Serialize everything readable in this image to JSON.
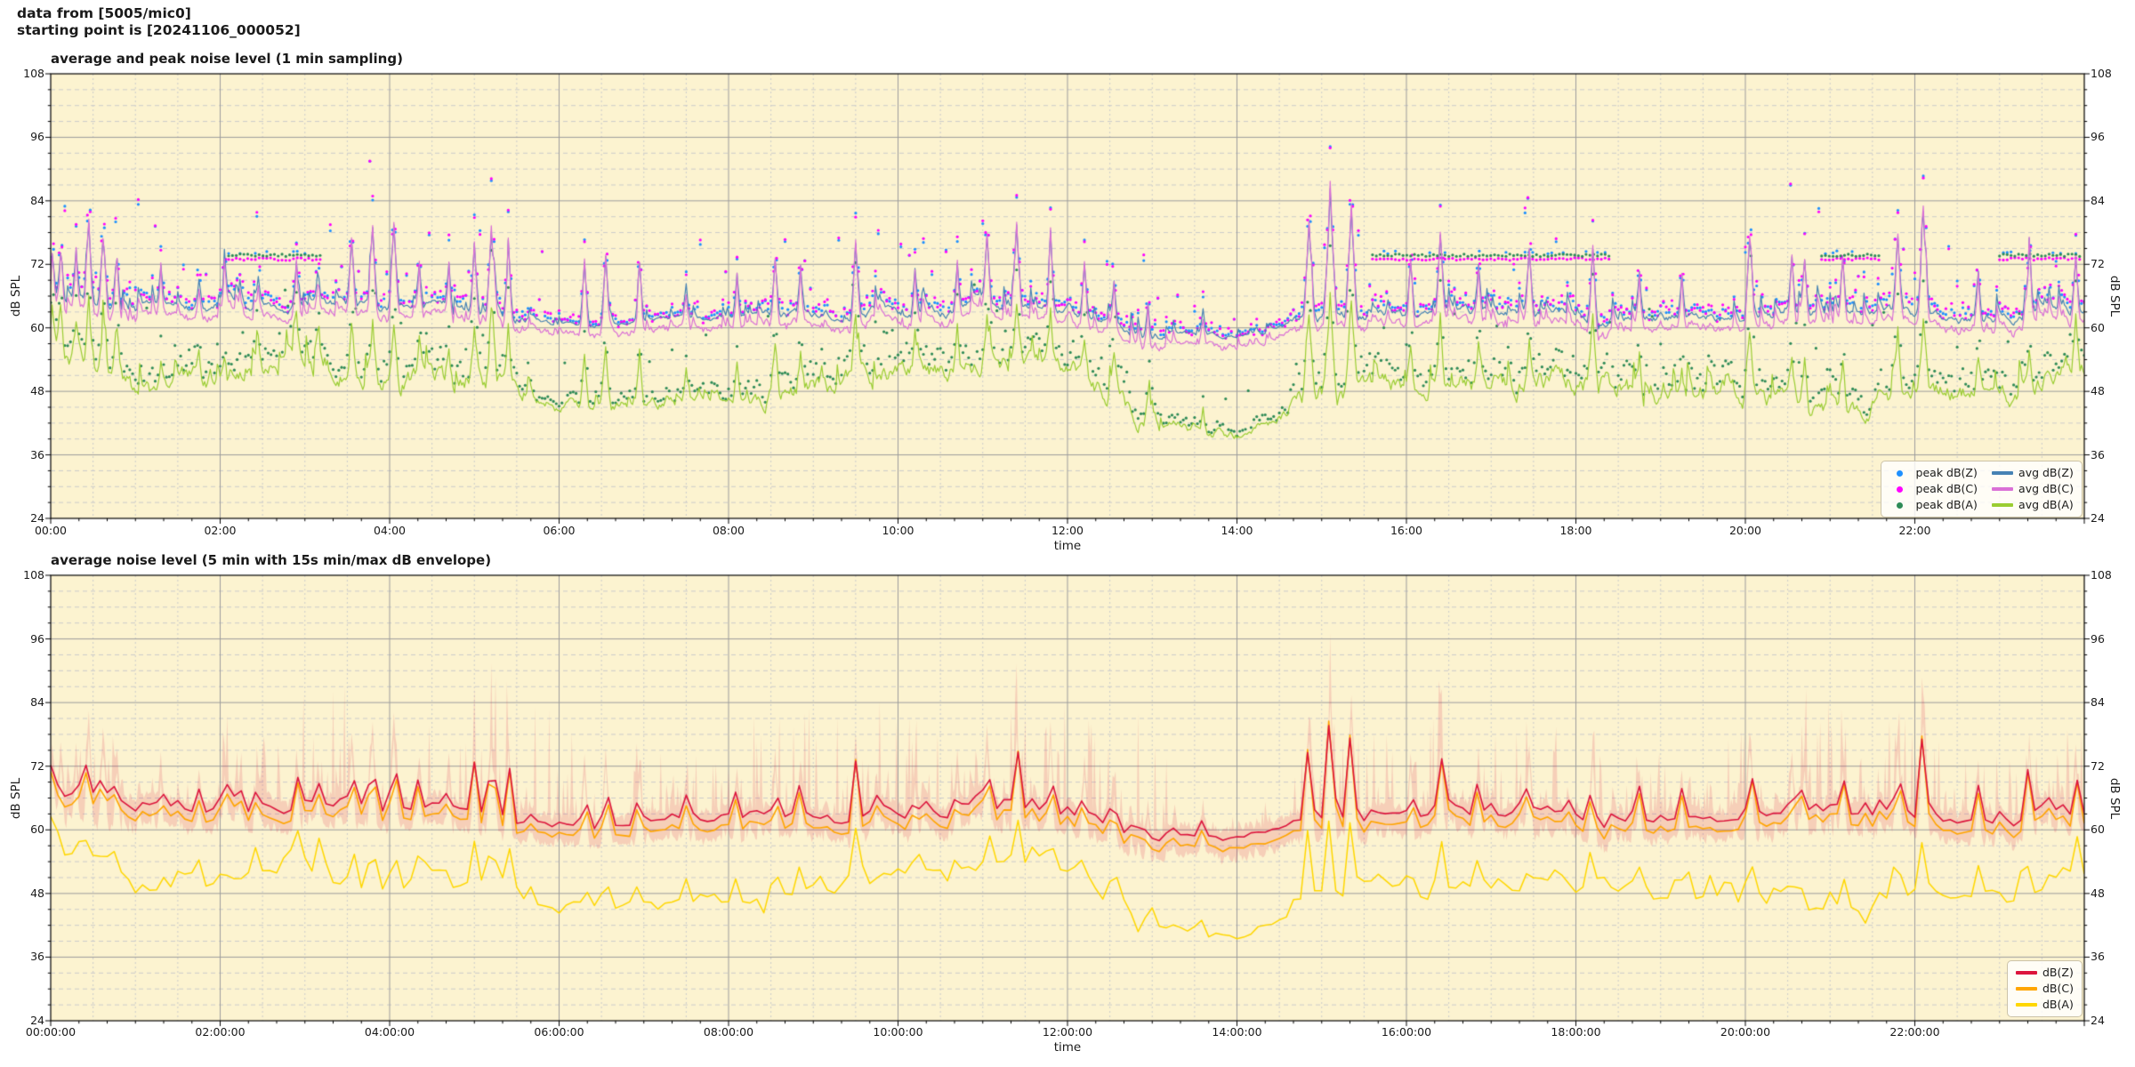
{
  "header": {
    "line1": "data from [5005/mic0]",
    "line2": "starting point is [20241106_000052]"
  },
  "style": {
    "figure_bg": "#ffffff",
    "axes_bg": "#FCF3D0",
    "grid_major": "#9c9c9c",
    "grid_minor": "#cbcbcb",
    "spine": "#000000",
    "text": "#1a1a1a"
  },
  "charts": [
    {
      "title": "average and peak noise level (1 min sampling)",
      "xlabel": "time",
      "ylabel": "dB SPL",
      "legend": [
        {
          "label": "peak dB(Z)",
          "swatch": "dot",
          "color": "#1E90FF",
          "col": 0
        },
        {
          "label": "peak dB(C)",
          "swatch": "dot",
          "color": "#FF00FF",
          "col": 0
        },
        {
          "label": "peak dB(A)",
          "swatch": "dot",
          "color": "#2E8B57",
          "col": 0
        },
        {
          "label": "avg dB(Z)",
          "swatch": "line",
          "color": "#4682B4",
          "col": 1
        },
        {
          "label": "avg dB(C)",
          "swatch": "line",
          "color": "#DA70D6",
          "col": 1
        },
        {
          "label": "avg dB(A)",
          "swatch": "line",
          "color": "#9ACD32",
          "col": 1
        }
      ]
    },
    {
      "title": "average noise level (5 min with 15s min/max dB envelope)",
      "xlabel": "time",
      "ylabel": "dB SPL",
      "legend": [
        {
          "label": "dB(Z)",
          "swatch": "line-thick",
          "color": "#DC143C",
          "col": 0
        },
        {
          "label": "dB(C)",
          "swatch": "line-thick",
          "color": "#FFA500",
          "col": 0
        },
        {
          "label": "dB(A)",
          "swatch": "line-thick",
          "color": "#FFD700",
          "col": 0
        }
      ]
    }
  ],
  "chart_data": [
    {
      "type": "line+scatter",
      "title": "average and peak noise level (1 min sampling)",
      "x_unit": "hours",
      "x_range": [
        0,
        24
      ],
      "sampling_minutes": 1,
      "ylim": [
        24,
        108
      ],
      "y_ticks": [
        108,
        96,
        84,
        72,
        60,
        48,
        36,
        24
      ],
      "y_minor_step_dB": 3,
      "x_tick_hours": [
        0,
        2,
        4,
        6,
        8,
        10,
        12,
        14,
        16,
        18,
        20,
        22
      ],
      "x_tick_labels": [
        "00:00",
        "02:00",
        "04:00",
        "06:00",
        "08:00",
        "10:00",
        "12:00",
        "14:00",
        "16:00",
        "18:00",
        "20:00",
        "22:00"
      ],
      "x_minor_grid_min": 30,
      "x_minor_tick_min": 20,
      "grid": {
        "major": true,
        "minor": true
      },
      "legend_position": "lower right",
      "series": [
        {
          "name": "peak dB(Z)",
          "kind": "scatter",
          "color": "#1E90FF",
          "relation": "avg dB(Z) + 0.5-2 dB in quiet periods, bursts up to ~96 dB"
        },
        {
          "name": "peak dB(C)",
          "kind": "scatter",
          "color": "#FF00FF",
          "relation": "approx peak dB(Z) - 1 dB"
        },
        {
          "name": "peak dB(A)",
          "kind": "scatter",
          "color": "#2E8B57",
          "relation": "avg dB(A) + 1-10 dB"
        },
        {
          "name": "avg dB(Z)",
          "kind": "line",
          "color": "#4682B4",
          "hourly_levels_dB": [
            66,
            63.5,
            64,
            64.5,
            64,
            64,
            60.8,
            61,
            62,
            62.5,
            63,
            63,
            63.5,
            59,
            58.2,
            61.5,
            62.5,
            63,
            62.5,
            61.8,
            62.2,
            62.5,
            62,
            61.8,
            63.5
          ]
        },
        {
          "name": "avg dB(C)",
          "kind": "line",
          "color": "#DA70D6",
          "offset_from_avg_dBZ_dB": -1.9
        },
        {
          "name": "avg dB(A)",
          "kind": "line",
          "color": "#9ACD32",
          "hourly_levels_dB": [
            57,
            48,
            51,
            53,
            50.5,
            51,
            45,
            45.5,
            47,
            49.5,
            51,
            52,
            53,
            42,
            40,
            47,
            49,
            50,
            50,
            47,
            47.5,
            46,
            47,
            47.5,
            53
          ]
        }
      ],
      "spike_events_hour_ampdB": [
        [
          0.02,
          9
        ],
        [
          0.12,
          10
        ],
        [
          0.3,
          8
        ],
        [
          0.45,
          13
        ],
        [
          0.62,
          14
        ],
        [
          0.78,
          10
        ],
        [
          1.3,
          7
        ],
        [
          1.75,
          5
        ],
        [
          2.05,
          6
        ],
        [
          2.45,
          5
        ],
        [
          2.9,
          8
        ],
        [
          3.15,
          6
        ],
        [
          3.55,
          12
        ],
        [
          3.8,
          13
        ],
        [
          4.05,
          14
        ],
        [
          4.35,
          8
        ],
        [
          4.7,
          9
        ],
        [
          5.0,
          13
        ],
        [
          5.2,
          15
        ],
        [
          5.4,
          12
        ],
        [
          6.3,
          12
        ],
        [
          6.55,
          13
        ],
        [
          6.95,
          10
        ],
        [
          7.5,
          6
        ],
        [
          8.1,
          8
        ],
        [
          8.55,
          10
        ],
        [
          8.85,
          9
        ],
        [
          9.5,
          14
        ],
        [
          10.2,
          8
        ],
        [
          10.7,
          9
        ],
        [
          11.05,
          13
        ],
        [
          11.4,
          15
        ],
        [
          11.8,
          10
        ],
        [
          12.2,
          11
        ],
        [
          12.55,
          8
        ],
        [
          12.95,
          7
        ],
        [
          13.6,
          5
        ],
        [
          14.85,
          18
        ],
        [
          15.1,
          23
        ],
        [
          15.35,
          20
        ],
        [
          16.05,
          10
        ],
        [
          16.4,
          14
        ],
        [
          16.85,
          8
        ],
        [
          17.45,
          12
        ],
        [
          18.2,
          14
        ],
        [
          18.75,
          9
        ],
        [
          19.25,
          8
        ],
        [
          20.05,
          15
        ],
        [
          20.55,
          10
        ],
        [
          20.7,
          11
        ],
        [
          21.15,
          10
        ],
        [
          21.8,
          14
        ],
        [
          22.1,
          19
        ],
        [
          22.75,
          9
        ],
        [
          23.35,
          10
        ],
        [
          23.9,
          11
        ]
      ],
      "constant_peak_rows": {
        "level_dB": 73.4,
        "hour_ranges": [
          [
            2.1,
            3.2
          ],
          [
            15.6,
            18.4
          ],
          [
            20.9,
            21.6
          ],
          [
            23.0,
            23.95
          ]
        ]
      },
      "quiet_ranges_hours": [
        [
          5.7,
          8.2
        ],
        [
          13.1,
          14.6
        ]
      ],
      "peak_max_dB": 96,
      "seed": 20241106
    },
    {
      "type": "line+band",
      "title": "average noise level (5 min with 15s min/max dB envelope)",
      "x_unit": "hours",
      "x_range": [
        0,
        24
      ],
      "sampling_minutes": 5,
      "ylim": [
        24,
        108
      ],
      "y_ticks": [
        108,
        96,
        84,
        72,
        60,
        48,
        36,
        24
      ],
      "y_minor_step_dB": 3,
      "x_tick_hours": [
        0,
        2,
        4,
        6,
        8,
        10,
        12,
        14,
        16,
        18,
        20,
        22
      ],
      "x_tick_labels": [
        "00:00:00",
        "02:00:00",
        "04:00:00",
        "06:00:00",
        "08:00:00",
        "10:00:00",
        "12:00:00",
        "14:00:00",
        "16:00:00",
        "18:00:00",
        "20:00:00",
        "22:00:00"
      ],
      "x_minor_grid_min": 30,
      "x_minor_tick_min": 20,
      "grid": {
        "major": true,
        "minor": true
      },
      "legend_position": "lower right",
      "series": [
        {
          "name": "dB(Z)",
          "kind": "line",
          "color": "#DC143C",
          "derived": "5-min mean of avg dB(Z)"
        },
        {
          "name": "dB(C)",
          "kind": "line",
          "color": "#FFA500",
          "derived": "5-min mean of avg dB(C)"
        },
        {
          "name": "dB(A)",
          "kind": "line",
          "color": "#FFD700",
          "derived": "5-min mean of avg dB(A)"
        }
      ],
      "envelope": {
        "applies_to": "dB(Z)/dB(C)",
        "resolution_s": 15,
        "color": "#DC143C",
        "alpha": 0.16,
        "max_dB": 97,
        "active_ranges_hour_maxextra_dB": [
          [
            0.25,
            1.1,
            9
          ],
          [
            1.9,
            3.6,
            15
          ],
          [
            4.4,
            6.3,
            14
          ],
          [
            6.3,
            8.2,
            7
          ],
          [
            8.3,
            13.2,
            14
          ],
          [
            13.2,
            14.5,
            5
          ],
          [
            14.6,
            15.7,
            12
          ],
          [
            15.7,
            18.4,
            10
          ],
          [
            18.4,
            19.6,
            7
          ],
          [
            19.8,
            21.9,
            13
          ],
          [
            21.95,
            23.98,
            10
          ]
        ]
      },
      "seed": 7
    }
  ]
}
